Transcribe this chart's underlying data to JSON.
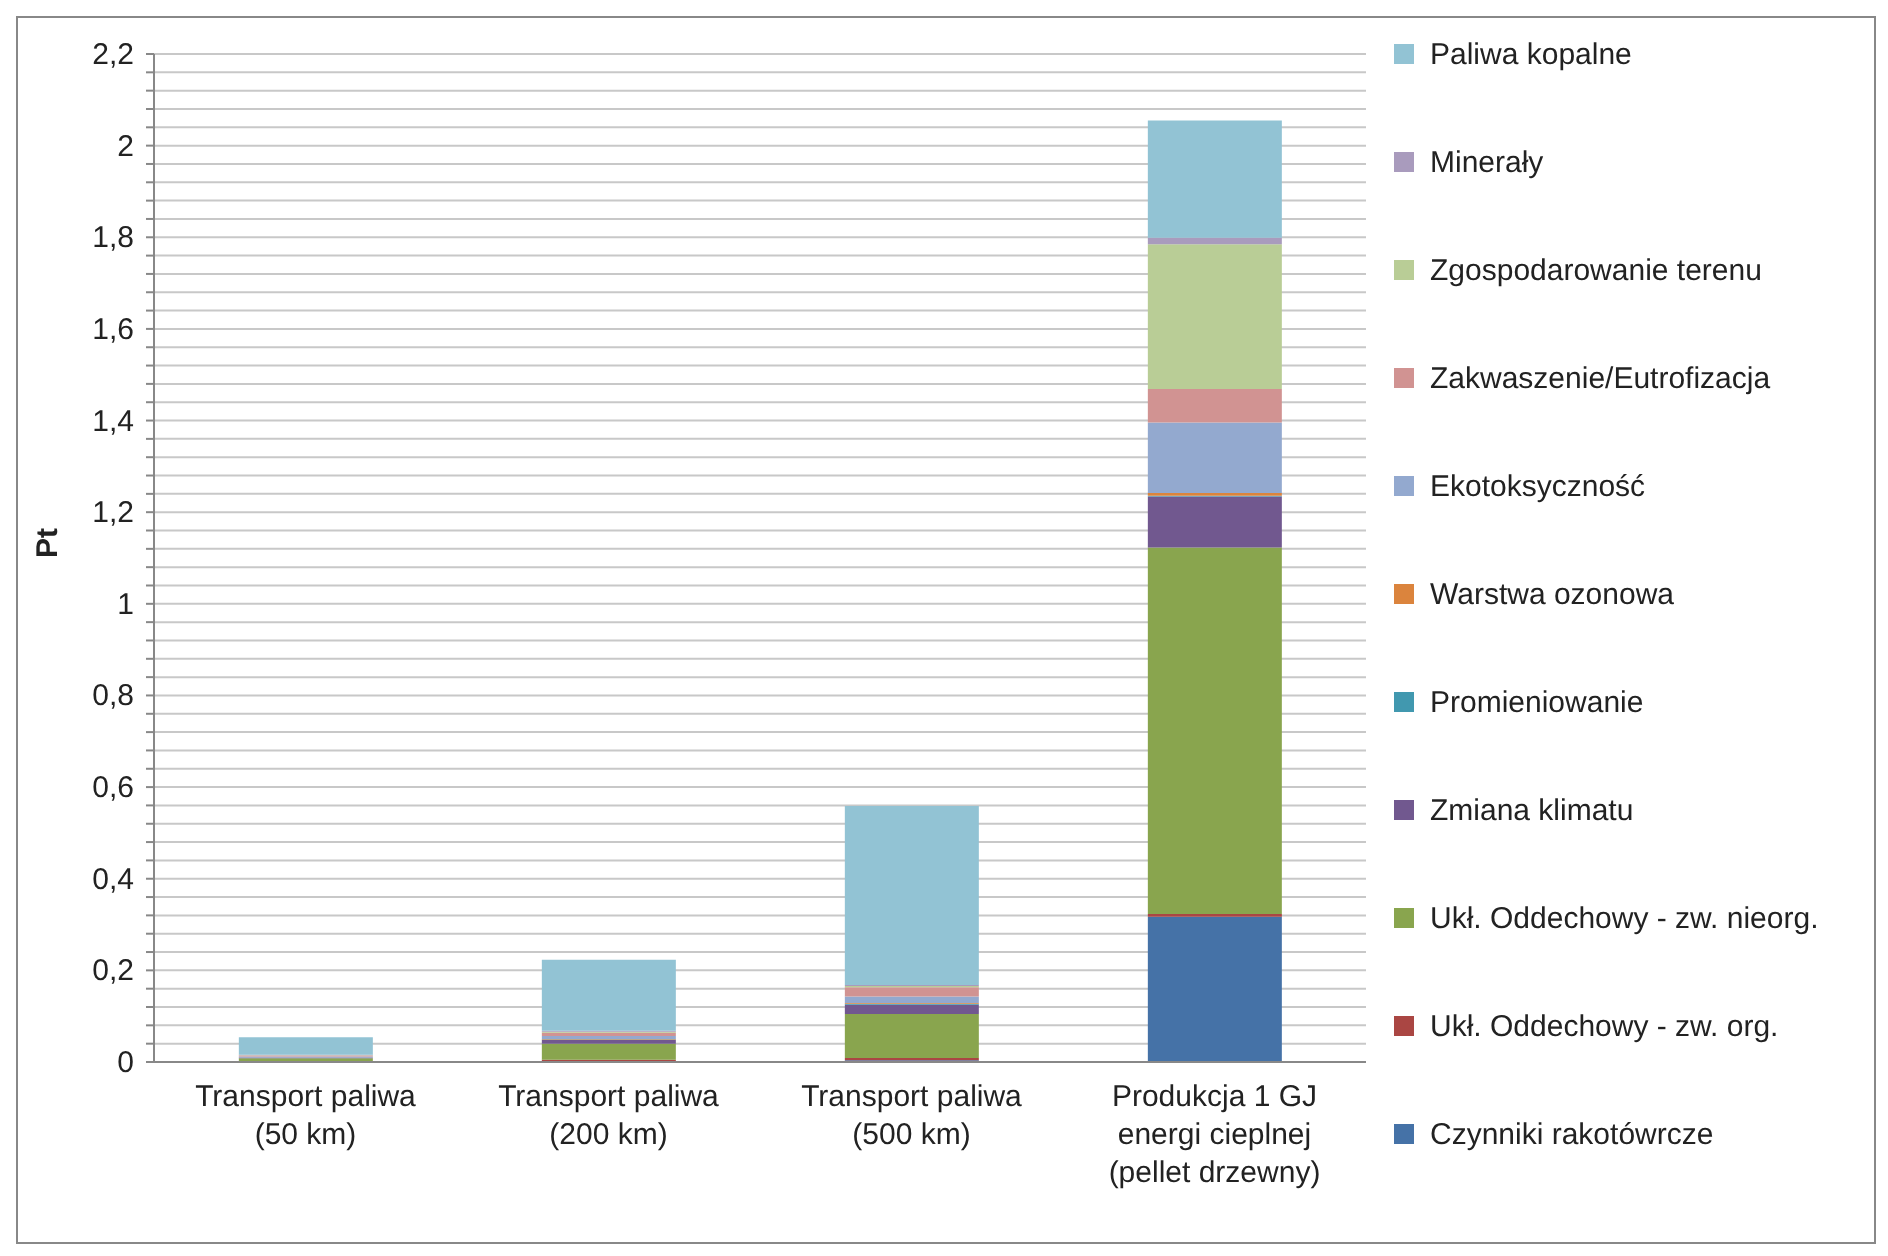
{
  "chart_data": {
    "type": "bar",
    "stacked": true,
    "ylabel": "Pt",
    "categories": [
      "Transport paliwa\n(50 km)",
      "Transport paliwa\n(200 km)",
      "Transport paliwa\n(500 km)",
      "Produkcja 1 GJ\nenergi cieplnej\n(pellet drzewny)"
    ],
    "series": [
      {
        "name": "Czynniki rakotówrcze",
        "color": "#4572a7",
        "values": [
          0.001,
          0.002,
          0.004,
          0.317
        ]
      },
      {
        "name": "Ukł. Oddechowy - zw. org.",
        "color": "#aa4643",
        "values": [
          0.001,
          0.003,
          0.005,
          0.006
        ]
      },
      {
        "name": "Ukł. Oddechowy - zw. nieorg.",
        "color": "#89a54e",
        "values": [
          0.006,
          0.035,
          0.096,
          0.8
        ]
      },
      {
        "name": "Zmiana klimatu",
        "color": "#71588f",
        "values": [
          0.002,
          0.008,
          0.02,
          0.111
        ]
      },
      {
        "name": "Promieniowanie",
        "color": "#4198af",
        "values": [
          0,
          0.001,
          0.002,
          0.002
        ]
      },
      {
        "name": "Warstwa ozonowa",
        "color": "#db843d",
        "values": [
          0,
          0.001,
          0.002,
          0.006
        ]
      },
      {
        "name": "Ekotoksyczność",
        "color": "#93a9cf",
        "values": [
          0.002,
          0.007,
          0.014,
          0.154
        ]
      },
      {
        "name": "Zakwaszenie/Eutrofizacja",
        "color": "#d19392",
        "values": [
          0.002,
          0.007,
          0.02,
          0.073
        ]
      },
      {
        "name": "Zgospodarowanie terenu",
        "color": "#b9cd96",
        "values": [
          0.001,
          0.002,
          0.003,
          0.316
        ]
      },
      {
        "name": "Minerały",
        "color": "#a99bbd",
        "values": [
          0.001,
          0.002,
          0.002,
          0.014
        ]
      },
      {
        "name": "Paliwa kopalne",
        "color": "#92c3d4",
        "values": [
          0.038,
          0.155,
          0.391,
          0.256
        ]
      }
    ],
    "ylim": [
      0,
      2.2
    ],
    "yticks": [
      {
        "value": 0,
        "label": "0"
      },
      {
        "value": 0.04,
        "label": null
      },
      {
        "value": 0.08,
        "label": null
      },
      {
        "value": 0.12,
        "label": null
      },
      {
        "value": 0.16,
        "label": null
      },
      {
        "value": 0.2,
        "label": "0,2"
      },
      {
        "value": 0.24,
        "label": null
      },
      {
        "value": 0.28,
        "label": null
      },
      {
        "value": 0.32,
        "label": null
      },
      {
        "value": 0.36,
        "label": null
      },
      {
        "value": 0.4,
        "label": "0,4"
      },
      {
        "value": 0.44,
        "label": null
      },
      {
        "value": 0.48,
        "label": null
      },
      {
        "value": 0.52,
        "label": null
      },
      {
        "value": 0.56,
        "label": null
      },
      {
        "value": 0.6,
        "label": "0,6"
      },
      {
        "value": 0.64,
        "label": null
      },
      {
        "value": 0.68,
        "label": null
      },
      {
        "value": 0.72,
        "label": null
      },
      {
        "value": 0.76,
        "label": null
      },
      {
        "value": 0.8,
        "label": "0,8"
      },
      {
        "value": 0.84,
        "label": null
      },
      {
        "value": 0.88,
        "label": null
      },
      {
        "value": 0.92,
        "label": null
      },
      {
        "value": 0.96,
        "label": null
      },
      {
        "value": 1,
        "label": "1"
      },
      {
        "value": 1.04,
        "label": null
      },
      {
        "value": 1.08,
        "label": null
      },
      {
        "value": 1.12,
        "label": null
      },
      {
        "value": 1.16,
        "label": null
      },
      {
        "value": 1.2,
        "label": "1,2"
      },
      {
        "value": 1.24,
        "label": null
      },
      {
        "value": 1.28,
        "label": null
      },
      {
        "value": 1.32,
        "label": null
      },
      {
        "value": 1.36,
        "label": null
      },
      {
        "value": 1.4,
        "label": "1,4"
      },
      {
        "value": 1.44,
        "label": null
      },
      {
        "value": 1.48,
        "label": null
      },
      {
        "value": 1.52,
        "label": null
      },
      {
        "value": 1.56,
        "label": null
      },
      {
        "value": 1.6,
        "label": "1,6"
      },
      {
        "value": 1.64,
        "label": null
      },
      {
        "value": 1.68,
        "label": null
      },
      {
        "value": 1.72,
        "label": null
      },
      {
        "value": 1.76,
        "label": null
      },
      {
        "value": 1.8,
        "label": "1,8"
      },
      {
        "value": 1.84,
        "label": null
      },
      {
        "value": 1.88,
        "label": null
      },
      {
        "value": 1.92,
        "label": null
      },
      {
        "value": 1.96,
        "label": null
      },
      {
        "value": 2,
        "label": "2"
      },
      {
        "value": 2.04,
        "label": null
      },
      {
        "value": 2.08,
        "label": null
      },
      {
        "value": 2.12,
        "label": null
      },
      {
        "value": 2.16,
        "label": null
      },
      {
        "value": 2.2,
        "label": "2,2"
      }
    ],
    "grid": "y",
    "legend": "right"
  }
}
